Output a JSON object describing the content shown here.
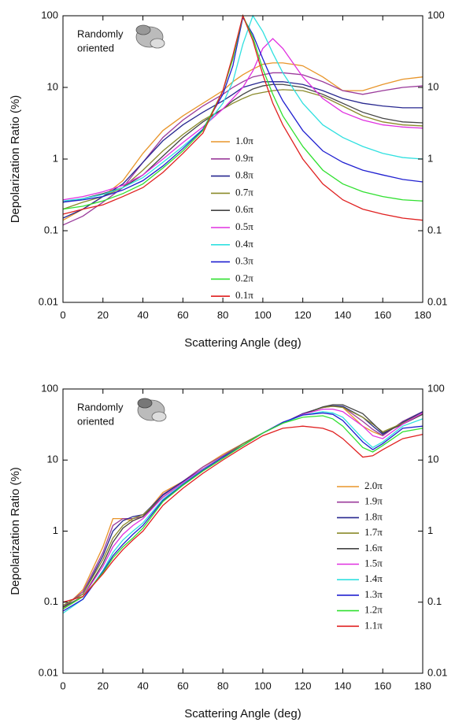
{
  "chart_data": [
    {
      "type": "line",
      "y_label": "Depolarization Ratio (%)",
      "x_label": "Scattering Angle (deg)",
      "annotation_lines": [
        "Randomly",
        "oriented"
      ],
      "log_y": true,
      "xlim": [
        0,
        180
      ],
      "xticks": [
        0,
        20,
        40,
        60,
        80,
        100,
        120,
        140,
        160,
        180
      ],
      "ylim": [
        0.01,
        100
      ],
      "yticks": [
        0.01,
        0.1,
        1,
        10,
        100
      ],
      "x": [
        0,
        10,
        20,
        30,
        40,
        50,
        60,
        70,
        80,
        85,
        90,
        95,
        100,
        105,
        110,
        120,
        130,
        140,
        150,
        160,
        170,
        180
      ],
      "series": [
        {
          "name": "1.0π",
          "color": "#e8952a",
          "values": [
            0.14,
            0.2,
            0.3,
            0.5,
            1.2,
            2.5,
            4,
            6,
            9,
            12,
            15,
            18,
            21,
            22,
            22,
            20,
            14,
            9,
            9,
            11,
            13,
            14
          ]
        },
        {
          "name": "0.9π",
          "color": "#9b3b9b",
          "values": [
            0.12,
            0.16,
            0.25,
            0.4,
            0.9,
            2,
            3.5,
            5.5,
            8,
            10,
            12,
            14,
            15,
            16,
            16,
            15,
            12,
            9,
            8,
            9,
            10,
            10.5
          ]
        },
        {
          "name": "0.8π",
          "color": "#27278f",
          "values": [
            0.15,
            0.2,
            0.3,
            0.45,
            0.9,
            1.8,
            3,
            4.5,
            6.5,
            8,
            10,
            11,
            12,
            12,
            12,
            11,
            9,
            7,
            6,
            5.5,
            5.2,
            5.2
          ]
        },
        {
          "name": "0.7π",
          "color": "#8a8a2a",
          "values": [
            0.2,
            0.25,
            0.3,
            0.4,
            0.7,
            1.3,
            2.2,
            3.5,
            5,
            6,
            7,
            8,
            8.5,
            9,
            9.3,
            9,
            7.5,
            5.5,
            4,
            3.3,
            3,
            2.9
          ]
        },
        {
          "name": "0.6π",
          "color": "#444444",
          "values": [
            0.25,
            0.28,
            0.33,
            0.4,
            0.6,
            1.1,
            2,
            3.3,
            5,
            6.5,
            8,
            9.5,
            10.5,
            11,
            11,
            10,
            8,
            6,
            4.5,
            3.7,
            3.3,
            3.2
          ]
        },
        {
          "name": "0.5π",
          "color": "#e030e0",
          "values": [
            0.27,
            0.3,
            0.35,
            0.43,
            0.6,
            1,
            1.7,
            2.8,
            5,
            7,
            10,
            17,
            35,
            48,
            35,
            14,
            7,
            4.5,
            3.5,
            3,
            2.8,
            2.7
          ]
        },
        {
          "name": "0.4π",
          "color": "#30e0e0",
          "values": [
            0.26,
            0.28,
            0.32,
            0.4,
            0.55,
            0.9,
            1.5,
            2.6,
            6,
            12,
            40,
            100,
            60,
            30,
            16,
            6,
            3,
            2,
            1.5,
            1.2,
            1.05,
            1.0
          ]
        },
        {
          "name": "0.3π",
          "color": "#2020d0",
          "values": [
            0.25,
            0.27,
            0.3,
            0.37,
            0.5,
            0.8,
            1.4,
            2.6,
            8,
            20,
            95,
            55,
            25,
            12,
            6.5,
            2.5,
            1.3,
            0.9,
            0.7,
            0.6,
            0.52,
            0.48
          ]
        },
        {
          "name": "0.2π",
          "color": "#30e030",
          "values": [
            0.2,
            0.22,
            0.26,
            0.33,
            0.45,
            0.75,
            1.3,
            2.5,
            9,
            25,
            100,
            50,
            18,
            8,
            4,
            1.5,
            0.7,
            0.45,
            0.35,
            0.3,
            0.27,
            0.26
          ]
        },
        {
          "name": "0.1π",
          "color": "#e02020",
          "values": [
            0.17,
            0.2,
            0.23,
            0.3,
            0.4,
            0.65,
            1.2,
            2.3,
            9,
            28,
            100,
            45,
            15,
            6,
            3,
            1,
            0.45,
            0.27,
            0.2,
            0.17,
            0.15,
            0.14
          ]
        }
      ]
    },
    {
      "type": "line",
      "y_label": "Depolarization Ratio (%)",
      "x_label": "Scattering Angle (deg)",
      "annotation_lines": [
        "Randomly",
        "oriented"
      ],
      "log_y": true,
      "xlim": [
        0,
        180
      ],
      "xticks": [
        0,
        20,
        40,
        60,
        80,
        100,
        120,
        140,
        160,
        180
      ],
      "ylim": [
        0.01,
        100
      ],
      "yticks": [
        0.01,
        0.1,
        1,
        10,
        100
      ],
      "x": [
        0,
        10,
        20,
        25,
        30,
        35,
        40,
        50,
        60,
        70,
        80,
        90,
        100,
        110,
        120,
        130,
        135,
        140,
        150,
        155,
        160,
        170,
        180
      ],
      "series": [
        {
          "name": "2.0π",
          "color": "#e8952a",
          "values": [
            0.08,
            0.15,
            0.6,
            1.5,
            1.5,
            1.4,
            1.6,
            3.5,
            5,
            8,
            12,
            17,
            24,
            33,
            45,
            55,
            58,
            55,
            30,
            25,
            22,
            35,
            45
          ]
        },
        {
          "name": "1.9π",
          "color": "#9b3b9b",
          "values": [
            0.085,
            0.14,
            0.5,
            1.2,
            1.5,
            1.5,
            1.6,
            3.3,
            5,
            8,
            11.5,
            17,
            24,
            33,
            45,
            55,
            57,
            56,
            35,
            27,
            22,
            35,
            48
          ]
        },
        {
          "name": "1.8π",
          "color": "#27278f",
          "values": [
            0.09,
            0.13,
            0.45,
            1,
            1.4,
            1.6,
            1.7,
            3.2,
            5,
            7.5,
            11,
            17,
            24,
            33,
            45,
            55,
            58,
            57,
            40,
            30,
            23,
            34,
            48
          ]
        },
        {
          "name": "1.7π",
          "color": "#8a8a2a",
          "values": [
            0.09,
            0.13,
            0.4,
            0.8,
            1.2,
            1.5,
            1.7,
            3,
            4.8,
            7.5,
            11,
            17,
            24,
            33,
            44,
            55,
            57,
            55,
            40,
            32,
            25,
            33,
            46
          ]
        },
        {
          "name": "1.6π",
          "color": "#444444",
          "values": [
            0.085,
            0.12,
            0.35,
            0.7,
            1.1,
            1.4,
            1.6,
            3,
            4.8,
            7.5,
            11,
            16,
            24,
            33,
            44,
            56,
            60,
            60,
            45,
            33,
            24,
            32,
            44
          ]
        },
        {
          "name": "1.5π",
          "color": "#e030e0",
          "values": [
            0.08,
            0.12,
            0.32,
            0.6,
            0.9,
            1.2,
            1.5,
            3,
            4.8,
            7.5,
            11,
            16,
            24,
            33,
            44,
            52,
            52,
            48,
            30,
            22,
            20,
            32,
            46
          ]
        },
        {
          "name": "1.4π",
          "color": "#30e0e0",
          "values": [
            0.07,
            0.11,
            0.28,
            0.5,
            0.75,
            1,
            1.3,
            2.8,
            4.6,
            7.3,
            11,
            16,
            24,
            33,
            43,
            48,
            46,
            40,
            20,
            15,
            18,
            30,
            38
          ]
        },
        {
          "name": "1.3π",
          "color": "#2020d0",
          "values": [
            0.075,
            0.11,
            0.27,
            0.45,
            0.65,
            0.9,
            1.2,
            2.7,
            4.5,
            7.2,
            11,
            16,
            24,
            34,
            43,
            46,
            44,
            36,
            18,
            14,
            17,
            28,
            30
          ]
        },
        {
          "name": "1.2π",
          "color": "#30e030",
          "values": [
            0.08,
            0.12,
            0.26,
            0.42,
            0.6,
            0.8,
            1.1,
            2.6,
            4.4,
            7,
            10.5,
            16,
            24,
            33,
            40,
            42,
            38,
            30,
            15,
            13,
            16,
            25,
            28
          ]
        },
        {
          "name": "1.1π",
          "color": "#e02020",
          "values": [
            0.1,
            0.12,
            0.25,
            0.38,
            0.55,
            0.75,
            1,
            2.3,
            4,
            6.5,
            10,
            15,
            22,
            28,
            30,
            28,
            25,
            20,
            11,
            11.5,
            14,
            20,
            23
          ]
        }
      ]
    }
  ]
}
